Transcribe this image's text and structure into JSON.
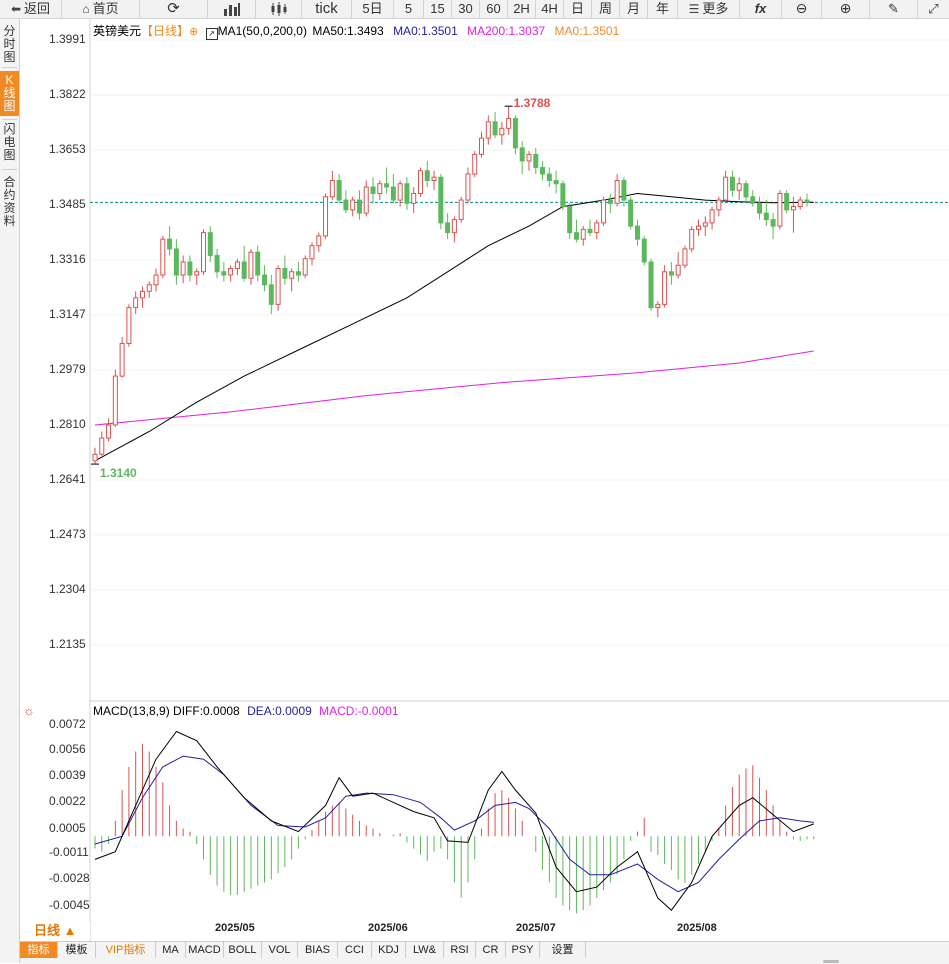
{
  "toolbar": {
    "back": "返回",
    "home": "首页",
    "tick": "tick",
    "intervals": [
      "5日",
      "5",
      "15",
      "30",
      "60",
      "2H",
      "4H",
      "日",
      "周",
      "月",
      "年"
    ],
    "more": "更多",
    "fx": "fx"
  },
  "left_tabs": [
    {
      "label": "分时图",
      "active": false
    },
    {
      "label": "K线图",
      "active": true
    },
    {
      "label": "闪电图",
      "active": false
    },
    {
      "label": "合约资料",
      "active": false
    }
  ],
  "header": {
    "symbol": "英镑美元",
    "period_tag": "【日线】",
    "ma_config": "MA1(50,0,200,0)",
    "ma50": "MA50:1.3493",
    "ma0a": "MA0:1.3501",
    "ma200": "MA200:1.3037",
    "ma0b": "MA0:1.3501"
  },
  "macd_header": {
    "name": "MACD(13,8,9)",
    "diff": "DIFF:0.0008",
    "dea": "DEA:0.0009",
    "macd": "MACD:-0.0001"
  },
  "price_axis": [
    "1.3991",
    "1.3822",
    "1.3653",
    "1.3485",
    "1.3316",
    "1.3147",
    "1.2979",
    "1.2810",
    "1.2641",
    "1.2473",
    "1.2304",
    "1.2135"
  ],
  "macd_axis": [
    "0.0072",
    "0.0056",
    "0.0039",
    "0.0022",
    "0.0005",
    "-0.0011",
    "-0.0028",
    "-0.0045"
  ],
  "date_axis": [
    "2025/05",
    "2025/06",
    "2025/07",
    "2025/08"
  ],
  "annotations": {
    "high": "1.3788",
    "low": "1.3140"
  },
  "colors": {
    "up": "#d9534f",
    "down": "#5cb85c",
    "ma50": "#000000",
    "ma200": "#e020e0",
    "current_line": "#008c8c",
    "diff": "#000000",
    "dea": "#1f1fa0",
    "accent": "#f08a24"
  },
  "period_label": "日线 ▲",
  "bottom_tabs": [
    "指标",
    "模板",
    "VIP指标",
    "MA",
    "MACD",
    "BOLL",
    "VOL",
    "BIAS",
    "CCI",
    "KDJ",
    "LW&",
    "RSI",
    "CR",
    "PSY",
    "设置"
  ],
  "chart_data": {
    "type": "candlestick",
    "price_ylim": [
      1.2135,
      1.3991
    ],
    "current_price": 1.3493,
    "candles": [
      {
        "o": 1.27,
        "h": 1.274,
        "l": 1.269,
        "c": 1.272
      },
      {
        "o": 1.272,
        "h": 1.279,
        "l": 1.2715,
        "c": 1.277
      },
      {
        "o": 1.277,
        "h": 1.283,
        "l": 1.276,
        "c": 1.281
      },
      {
        "o": 1.281,
        "h": 1.298,
        "l": 1.2805,
        "c": 1.296
      },
      {
        "o": 1.296,
        "h": 1.308,
        "l": 1.2955,
        "c": 1.306
      },
      {
        "o": 1.306,
        "h": 1.318,
        "l": 1.305,
        "c": 1.317
      },
      {
        "o": 1.317,
        "h": 1.322,
        "l": 1.315,
        "c": 1.32
      },
      {
        "o": 1.32,
        "h": 1.3235,
        "l": 1.317,
        "c": 1.322
      },
      {
        "o": 1.322,
        "h": 1.325,
        "l": 1.32,
        "c": 1.324
      },
      {
        "o": 1.324,
        "h": 1.329,
        "l": 1.322,
        "c": 1.327
      },
      {
        "o": 1.327,
        "h": 1.339,
        "l": 1.326,
        "c": 1.338
      },
      {
        "o": 1.338,
        "h": 1.342,
        "l": 1.333,
        "c": 1.335
      },
      {
        "o": 1.335,
        "h": 1.338,
        "l": 1.324,
        "c": 1.327
      },
      {
        "o": 1.327,
        "h": 1.333,
        "l": 1.3245,
        "c": 1.331
      },
      {
        "o": 1.331,
        "h": 1.333,
        "l": 1.325,
        "c": 1.327
      },
      {
        "o": 1.327,
        "h": 1.329,
        "l": 1.324,
        "c": 1.328
      },
      {
        "o": 1.328,
        "h": 1.341,
        "l": 1.327,
        "c": 1.34
      },
      {
        "o": 1.34,
        "h": 1.342,
        "l": 1.331,
        "c": 1.333
      },
      {
        "o": 1.333,
        "h": 1.335,
        "l": 1.326,
        "c": 1.328
      },
      {
        "o": 1.328,
        "h": 1.331,
        "l": 1.325,
        "c": 1.327
      },
      {
        "o": 1.327,
        "h": 1.33,
        "l": 1.325,
        "c": 1.329
      },
      {
        "o": 1.329,
        "h": 1.332,
        "l": 1.327,
        "c": 1.331
      },
      {
        "o": 1.331,
        "h": 1.336,
        "l": 1.325,
        "c": 1.326
      },
      {
        "o": 1.326,
        "h": 1.335,
        "l": 1.324,
        "c": 1.334
      },
      {
        "o": 1.334,
        "h": 1.336,
        "l": 1.325,
        "c": 1.327
      },
      {
        "o": 1.327,
        "h": 1.33,
        "l": 1.322,
        "c": 1.324
      },
      {
        "o": 1.324,
        "h": 1.327,
        "l": 1.315,
        "c": 1.318
      },
      {
        "o": 1.318,
        "h": 1.33,
        "l": 1.316,
        "c": 1.329
      },
      {
        "o": 1.329,
        "h": 1.333,
        "l": 1.324,
        "c": 1.326
      },
      {
        "o": 1.326,
        "h": 1.329,
        "l": 1.322,
        "c": 1.328
      },
      {
        "o": 1.328,
        "h": 1.331,
        "l": 1.325,
        "c": 1.327
      },
      {
        "o": 1.327,
        "h": 1.333,
        "l": 1.326,
        "c": 1.332
      },
      {
        "o": 1.332,
        "h": 1.337,
        "l": 1.33,
        "c": 1.336
      },
      {
        "o": 1.336,
        "h": 1.34,
        "l": 1.334,
        "c": 1.339
      },
      {
        "o": 1.339,
        "h": 1.352,
        "l": 1.338,
        "c": 1.351
      },
      {
        "o": 1.351,
        "h": 1.359,
        "l": 1.35,
        "c": 1.356
      },
      {
        "o": 1.356,
        "h": 1.358,
        "l": 1.349,
        "c": 1.35
      },
      {
        "o": 1.35,
        "h": 1.353,
        "l": 1.346,
        "c": 1.347
      },
      {
        "o": 1.347,
        "h": 1.351,
        "l": 1.345,
        "c": 1.35
      },
      {
        "o": 1.35,
        "h": 1.353,
        "l": 1.344,
        "c": 1.346
      },
      {
        "o": 1.346,
        "h": 1.356,
        "l": 1.345,
        "c": 1.354
      },
      {
        "o": 1.354,
        "h": 1.357,
        "l": 1.349,
        "c": 1.352
      },
      {
        "o": 1.352,
        "h": 1.356,
        "l": 1.35,
        "c": 1.355
      },
      {
        "o": 1.355,
        "h": 1.36,
        "l": 1.352,
        "c": 1.354
      },
      {
        "o": 1.354,
        "h": 1.358,
        "l": 1.349,
        "c": 1.35
      },
      {
        "o": 1.35,
        "h": 1.356,
        "l": 1.348,
        "c": 1.355
      },
      {
        "o": 1.355,
        "h": 1.357,
        "l": 1.347,
        "c": 1.349
      },
      {
        "o": 1.349,
        "h": 1.354,
        "l": 1.346,
        "c": 1.352
      },
      {
        "o": 1.352,
        "h": 1.36,
        "l": 1.351,
        "c": 1.359
      },
      {
        "o": 1.359,
        "h": 1.362,
        "l": 1.354,
        "c": 1.356
      },
      {
        "o": 1.356,
        "h": 1.359,
        "l": 1.353,
        "c": 1.357
      },
      {
        "o": 1.357,
        "h": 1.358,
        "l": 1.341,
        "c": 1.343
      },
      {
        "o": 1.343,
        "h": 1.346,
        "l": 1.338,
        "c": 1.34
      },
      {
        "o": 1.34,
        "h": 1.345,
        "l": 1.337,
        "c": 1.344
      },
      {
        "o": 1.344,
        "h": 1.351,
        "l": 1.343,
        "c": 1.35
      },
      {
        "o": 1.35,
        "h": 1.36,
        "l": 1.349,
        "c": 1.358
      },
      {
        "o": 1.358,
        "h": 1.365,
        "l": 1.357,
        "c": 1.364
      },
      {
        "o": 1.364,
        "h": 1.371,
        "l": 1.363,
        "c": 1.369
      },
      {
        "o": 1.369,
        "h": 1.376,
        "l": 1.367,
        "c": 1.374
      },
      {
        "o": 1.374,
        "h": 1.377,
        "l": 1.369,
        "c": 1.37
      },
      {
        "o": 1.37,
        "h": 1.374,
        "l": 1.367,
        "c": 1.372
      },
      {
        "o": 1.372,
        "h": 1.3788,
        "l": 1.37,
        "c": 1.375
      },
      {
        "o": 1.375,
        "h": 1.376,
        "l": 1.364,
        "c": 1.366
      },
      {
        "o": 1.366,
        "h": 1.368,
        "l": 1.358,
        "c": 1.362
      },
      {
        "o": 1.362,
        "h": 1.365,
        "l": 1.359,
        "c": 1.364
      },
      {
        "o": 1.364,
        "h": 1.366,
        "l": 1.358,
        "c": 1.36
      },
      {
        "o": 1.36,
        "h": 1.362,
        "l": 1.356,
        "c": 1.358
      },
      {
        "o": 1.358,
        "h": 1.36,
        "l": 1.354,
        "c": 1.356
      },
      {
        "o": 1.356,
        "h": 1.359,
        "l": 1.352,
        "c": 1.355
      },
      {
        "o": 1.355,
        "h": 1.356,
        "l": 1.347,
        "c": 1.348
      },
      {
        "o": 1.348,
        "h": 1.349,
        "l": 1.338,
        "c": 1.34
      },
      {
        "o": 1.34,
        "h": 1.344,
        "l": 1.337,
        "c": 1.338
      },
      {
        "o": 1.338,
        "h": 1.342,
        "l": 1.336,
        "c": 1.341
      },
      {
        "o": 1.341,
        "h": 1.344,
        "l": 1.339,
        "c": 1.34
      },
      {
        "o": 1.34,
        "h": 1.344,
        "l": 1.338,
        "c": 1.343
      },
      {
        "o": 1.343,
        "h": 1.351,
        "l": 1.342,
        "c": 1.35
      },
      {
        "o": 1.35,
        "h": 1.352,
        "l": 1.346,
        "c": 1.349
      },
      {
        "o": 1.349,
        "h": 1.358,
        "l": 1.348,
        "c": 1.356
      },
      {
        "o": 1.356,
        "h": 1.357,
        "l": 1.348,
        "c": 1.35
      },
      {
        "o": 1.35,
        "h": 1.351,
        "l": 1.341,
        "c": 1.342
      },
      {
        "o": 1.342,
        "h": 1.344,
        "l": 1.336,
        "c": 1.338
      },
      {
        "o": 1.338,
        "h": 1.339,
        "l": 1.33,
        "c": 1.331
      },
      {
        "o": 1.331,
        "h": 1.332,
        "l": 1.316,
        "c": 1.317
      },
      {
        "o": 1.317,
        "h": 1.319,
        "l": 1.314,
        "c": 1.318
      },
      {
        "o": 1.318,
        "h": 1.33,
        "l": 1.317,
        "c": 1.328
      },
      {
        "o": 1.328,
        "h": 1.331,
        "l": 1.324,
        "c": 1.327
      },
      {
        "o": 1.327,
        "h": 1.334,
        "l": 1.326,
        "c": 1.33
      },
      {
        "o": 1.33,
        "h": 1.336,
        "l": 1.329,
        "c": 1.335
      },
      {
        "o": 1.335,
        "h": 1.342,
        "l": 1.334,
        "c": 1.341
      },
      {
        "o": 1.341,
        "h": 1.344,
        "l": 1.339,
        "c": 1.342
      },
      {
        "o": 1.342,
        "h": 1.345,
        "l": 1.339,
        "c": 1.343
      },
      {
        "o": 1.343,
        "h": 1.348,
        "l": 1.341,
        "c": 1.347
      },
      {
        "o": 1.347,
        "h": 1.351,
        "l": 1.345,
        "c": 1.35
      },
      {
        "o": 1.35,
        "h": 1.359,
        "l": 1.349,
        "c": 1.357
      },
      {
        "o": 1.357,
        "h": 1.359,
        "l": 1.351,
        "c": 1.353
      },
      {
        "o": 1.353,
        "h": 1.357,
        "l": 1.35,
        "c": 1.355
      },
      {
        "o": 1.355,
        "h": 1.356,
        "l": 1.349,
        "c": 1.351
      },
      {
        "o": 1.351,
        "h": 1.353,
        "l": 1.348,
        "c": 1.349
      },
      {
        "o": 1.349,
        "h": 1.351,
        "l": 1.344,
        "c": 1.346
      },
      {
        "o": 1.346,
        "h": 1.35,
        "l": 1.342,
        "c": 1.344
      },
      {
        "o": 1.344,
        "h": 1.346,
        "l": 1.338,
        "c": 1.342
      },
      {
        "o": 1.342,
        "h": 1.353,
        "l": 1.341,
        "c": 1.352
      },
      {
        "o": 1.352,
        "h": 1.353,
        "l": 1.346,
        "c": 1.347
      },
      {
        "o": 1.347,
        "h": 1.351,
        "l": 1.34,
        "c": 1.348
      },
      {
        "o": 1.348,
        "h": 1.351,
        "l": 1.347,
        "c": 1.35
      },
      {
        "o": 1.35,
        "h": 1.352,
        "l": 1.348,
        "c": 1.3493
      }
    ],
    "ma50": [
      [
        0,
        1.27
      ],
      [
        8,
        1.279
      ],
      [
        15,
        1.288
      ],
      [
        22,
        1.296
      ],
      [
        30,
        1.304
      ],
      [
        38,
        1.312
      ],
      [
        46,
        1.32
      ],
      [
        52,
        1.328
      ],
      [
        58,
        1.336
      ],
      [
        64,
        1.342
      ],
      [
        69,
        1.348
      ],
      [
        75,
        1.35
      ],
      [
        80,
        1.352
      ],
      [
        85,
        1.351
      ],
      [
        90,
        1.35
      ],
      [
        95,
        1.3495
      ],
      [
        100,
        1.3492
      ],
      [
        106,
        1.3493
      ]
    ],
    "ma200": [
      [
        0,
        1.281
      ],
      [
        20,
        1.285
      ],
      [
        40,
        1.29
      ],
      [
        60,
        1.294
      ],
      [
        80,
        1.297
      ],
      [
        95,
        1.3
      ],
      [
        106,
        1.3037
      ]
    ],
    "macd_ylim": [
      -0.0055,
      0.008
    ],
    "macd_hist": [
      -0.0008,
      -0.001,
      -0.0005,
      0.001,
      0.003,
      0.0045,
      0.0055,
      0.006,
      0.0055,
      0.0045,
      0.0035,
      0.002,
      0.001,
      0.0005,
      0.0003,
      -0.0005,
      -0.0015,
      -0.0025,
      -0.0032,
      -0.0036,
      -0.0038,
      -0.0038,
      -0.0036,
      -0.0034,
      -0.0032,
      -0.003,
      -0.0028,
      -0.0024,
      -0.002,
      -0.0015,
      -0.0008,
      -0.0002,
      0.0004,
      0.001,
      0.0016,
      0.002,
      0.0022,
      0.0018,
      0.0014,
      0.001,
      0.0007,
      0.0005,
      0.0002,
      0.0,
      0.0001,
      0.0002,
      -0.0004,
      -0.0008,
      -0.0012,
      -0.0016,
      -0.001,
      -0.0008,
      -0.0015,
      -0.003,
      -0.004,
      -0.003,
      -0.0015,
      0.0005,
      0.0018,
      0.0028,
      0.003,
      0.0025,
      0.0018,
      0.001,
      0.0,
      -0.001,
      -0.0022,
      -0.003,
      -0.004,
      -0.0045,
      -0.0048,
      -0.005,
      -0.0048,
      -0.0045,
      -0.004,
      -0.0035,
      -0.003,
      -0.0025,
      -0.0015,
      -0.0003,
      0.0003,
      0.0012,
      -0.001,
      -0.0012,
      -0.0018,
      -0.0022,
      -0.0028,
      -0.003,
      -0.0025,
      -0.0018,
      -0.001,
      -0.0003,
      0.0005,
      0.002,
      0.0032,
      0.004,
      0.0044,
      0.0046,
      0.0038,
      0.003,
      0.002,
      0.001,
      0.0003,
      -0.0002,
      -0.0003,
      -0.0002,
      -0.0002
    ],
    "diff": [
      [
        0,
        -0.0015
      ],
      [
        3,
        -0.001
      ],
      [
        6,
        0.002
      ],
      [
        9,
        0.005
      ],
      [
        12,
        0.0068
      ],
      [
        15,
        0.0062
      ],
      [
        18,
        0.0045
      ],
      [
        22,
        0.0025
      ],
      [
        26,
        0.001
      ],
      [
        30,
        0.0003
      ],
      [
        34,
        0.002
      ],
      [
        36,
        0.0038
      ],
      [
        38,
        0.0026
      ],
      [
        41,
        0.0028
      ],
      [
        44,
        0.0022
      ],
      [
        47,
        0.0016
      ],
      [
        50,
        0.0012
      ],
      [
        52,
        -0.0003
      ],
      [
        55,
        -0.0004
      ],
      [
        58,
        0.003
      ],
      [
        60,
        0.0042
      ],
      [
        62,
        0.003
      ],
      [
        65,
        0.0015
      ],
      [
        68,
        -0.002
      ],
      [
        71,
        -0.0036
      ],
      [
        74,
        -0.0033
      ],
      [
        77,
        -0.002
      ],
      [
        80,
        -0.001
      ],
      [
        83,
        -0.004
      ],
      [
        85,
        -0.0048
      ],
      [
        88,
        -0.003
      ],
      [
        91,
        0.0
      ],
      [
        95,
        0.002
      ],
      [
        97,
        0.0025
      ],
      [
        100,
        0.0014
      ],
      [
        103,
        0.0003
      ],
      [
        106,
        0.0008
      ]
    ],
    "dea": [
      [
        0,
        -0.0005
      ],
      [
        4,
        0.0
      ],
      [
        7,
        0.0025
      ],
      [
        10,
        0.0045
      ],
      [
        13,
        0.0052
      ],
      [
        16,
        0.005
      ],
      [
        19,
        0.004
      ],
      [
        23,
        0.002
      ],
      [
        27,
        0.0007
      ],
      [
        31,
        0.0006
      ],
      [
        34,
        0.0012
      ],
      [
        37,
        0.0026
      ],
      [
        40,
        0.0028
      ],
      [
        44,
        0.0027
      ],
      [
        48,
        0.0022
      ],
      [
        51,
        0.0012
      ],
      [
        53,
        0.0004
      ],
      [
        56,
        0.001
      ],
      [
        59,
        0.002
      ],
      [
        62,
        0.0022
      ],
      [
        64,
        0.0018
      ],
      [
        67,
        0.0005
      ],
      [
        70,
        -0.0015
      ],
      [
        73,
        -0.0025
      ],
      [
        76,
        -0.0025
      ],
      [
        80,
        -0.0018
      ],
      [
        83,
        -0.0028
      ],
      [
        86,
        -0.0036
      ],
      [
        89,
        -0.003
      ],
      [
        92,
        -0.0015
      ],
      [
        95,
        -0.0002
      ],
      [
        98,
        0.001
      ],
      [
        101,
        0.0012
      ],
      [
        104,
        0.001
      ],
      [
        106,
        0.0009
      ]
    ]
  }
}
